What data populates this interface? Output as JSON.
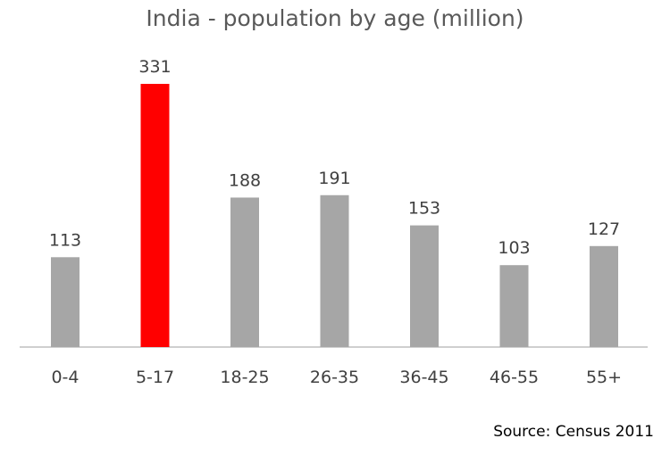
{
  "title": "India - population by age (million)",
  "source": "Source: Census 2011",
  "colors": {
    "bar": "#a6a6a6",
    "highlight": "#ff0000",
    "axis": "#bfbfbf",
    "label": "#404040"
  },
  "chart_data": {
    "type": "bar",
    "title": "India - population by age (million)",
    "categories": [
      "0-4",
      "5-17",
      "18-25",
      "26-35",
      "36-45",
      "46-55",
      "55+"
    ],
    "values": [
      113,
      331,
      188,
      191,
      153,
      103,
      127
    ],
    "highlight_index": 1,
    "ylim": [
      0,
      331
    ],
    "grid": false,
    "data_labels": true
  }
}
